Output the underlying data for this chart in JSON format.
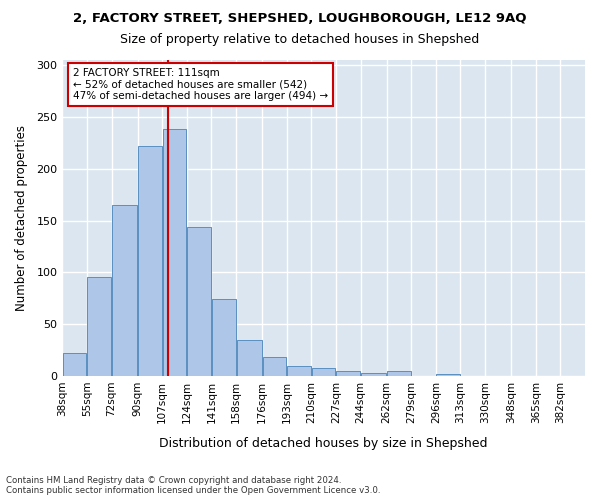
{
  "title1": "2, FACTORY STREET, SHEPSHED, LOUGHBOROUGH, LE12 9AQ",
  "title2": "Size of property relative to detached houses in Shepshed",
  "xlabel": "Distribution of detached houses by size in Shepshed",
  "ylabel": "Number of detached properties",
  "bar_labels": [
    "38sqm",
    "55sqm",
    "72sqm",
    "90sqm",
    "107sqm",
    "124sqm",
    "141sqm",
    "158sqm",
    "176sqm",
    "193sqm",
    "210sqm",
    "227sqm",
    "244sqm",
    "262sqm",
    "279sqm",
    "296sqm",
    "313sqm",
    "330sqm",
    "348sqm",
    "365sqm",
    "382sqm"
  ],
  "bar_heights": [
    22,
    96,
    165,
    222,
    238,
    144,
    74,
    35,
    18,
    10,
    8,
    5,
    3,
    5,
    0,
    2,
    0,
    0,
    0,
    0
  ],
  "bar_color": "#aec6e8",
  "bar_edge_color": "#5a8fc0",
  "vline_color": "#cc0000",
  "annotation_text": "2 FACTORY STREET: 111sqm\n← 52% of detached houses are smaller (542)\n47% of semi-detached houses are larger (494) →",
  "annotation_box_color": "#ffffff",
  "annotation_box_edge": "#cc0000",
  "ylim": [
    0,
    305
  ],
  "yticks": [
    0,
    50,
    100,
    150,
    200,
    250,
    300
  ],
  "footnote": "Contains HM Land Registry data © Crown copyright and database right 2024.\nContains public sector information licensed under the Open Government Licence v3.0.",
  "bg_color": "#dce6f0",
  "bins": [
    38,
    55,
    72,
    90,
    107,
    124,
    141,
    158,
    176,
    193,
    210,
    227,
    244,
    262,
    279,
    296,
    313,
    330,
    348,
    365,
    382
  ]
}
